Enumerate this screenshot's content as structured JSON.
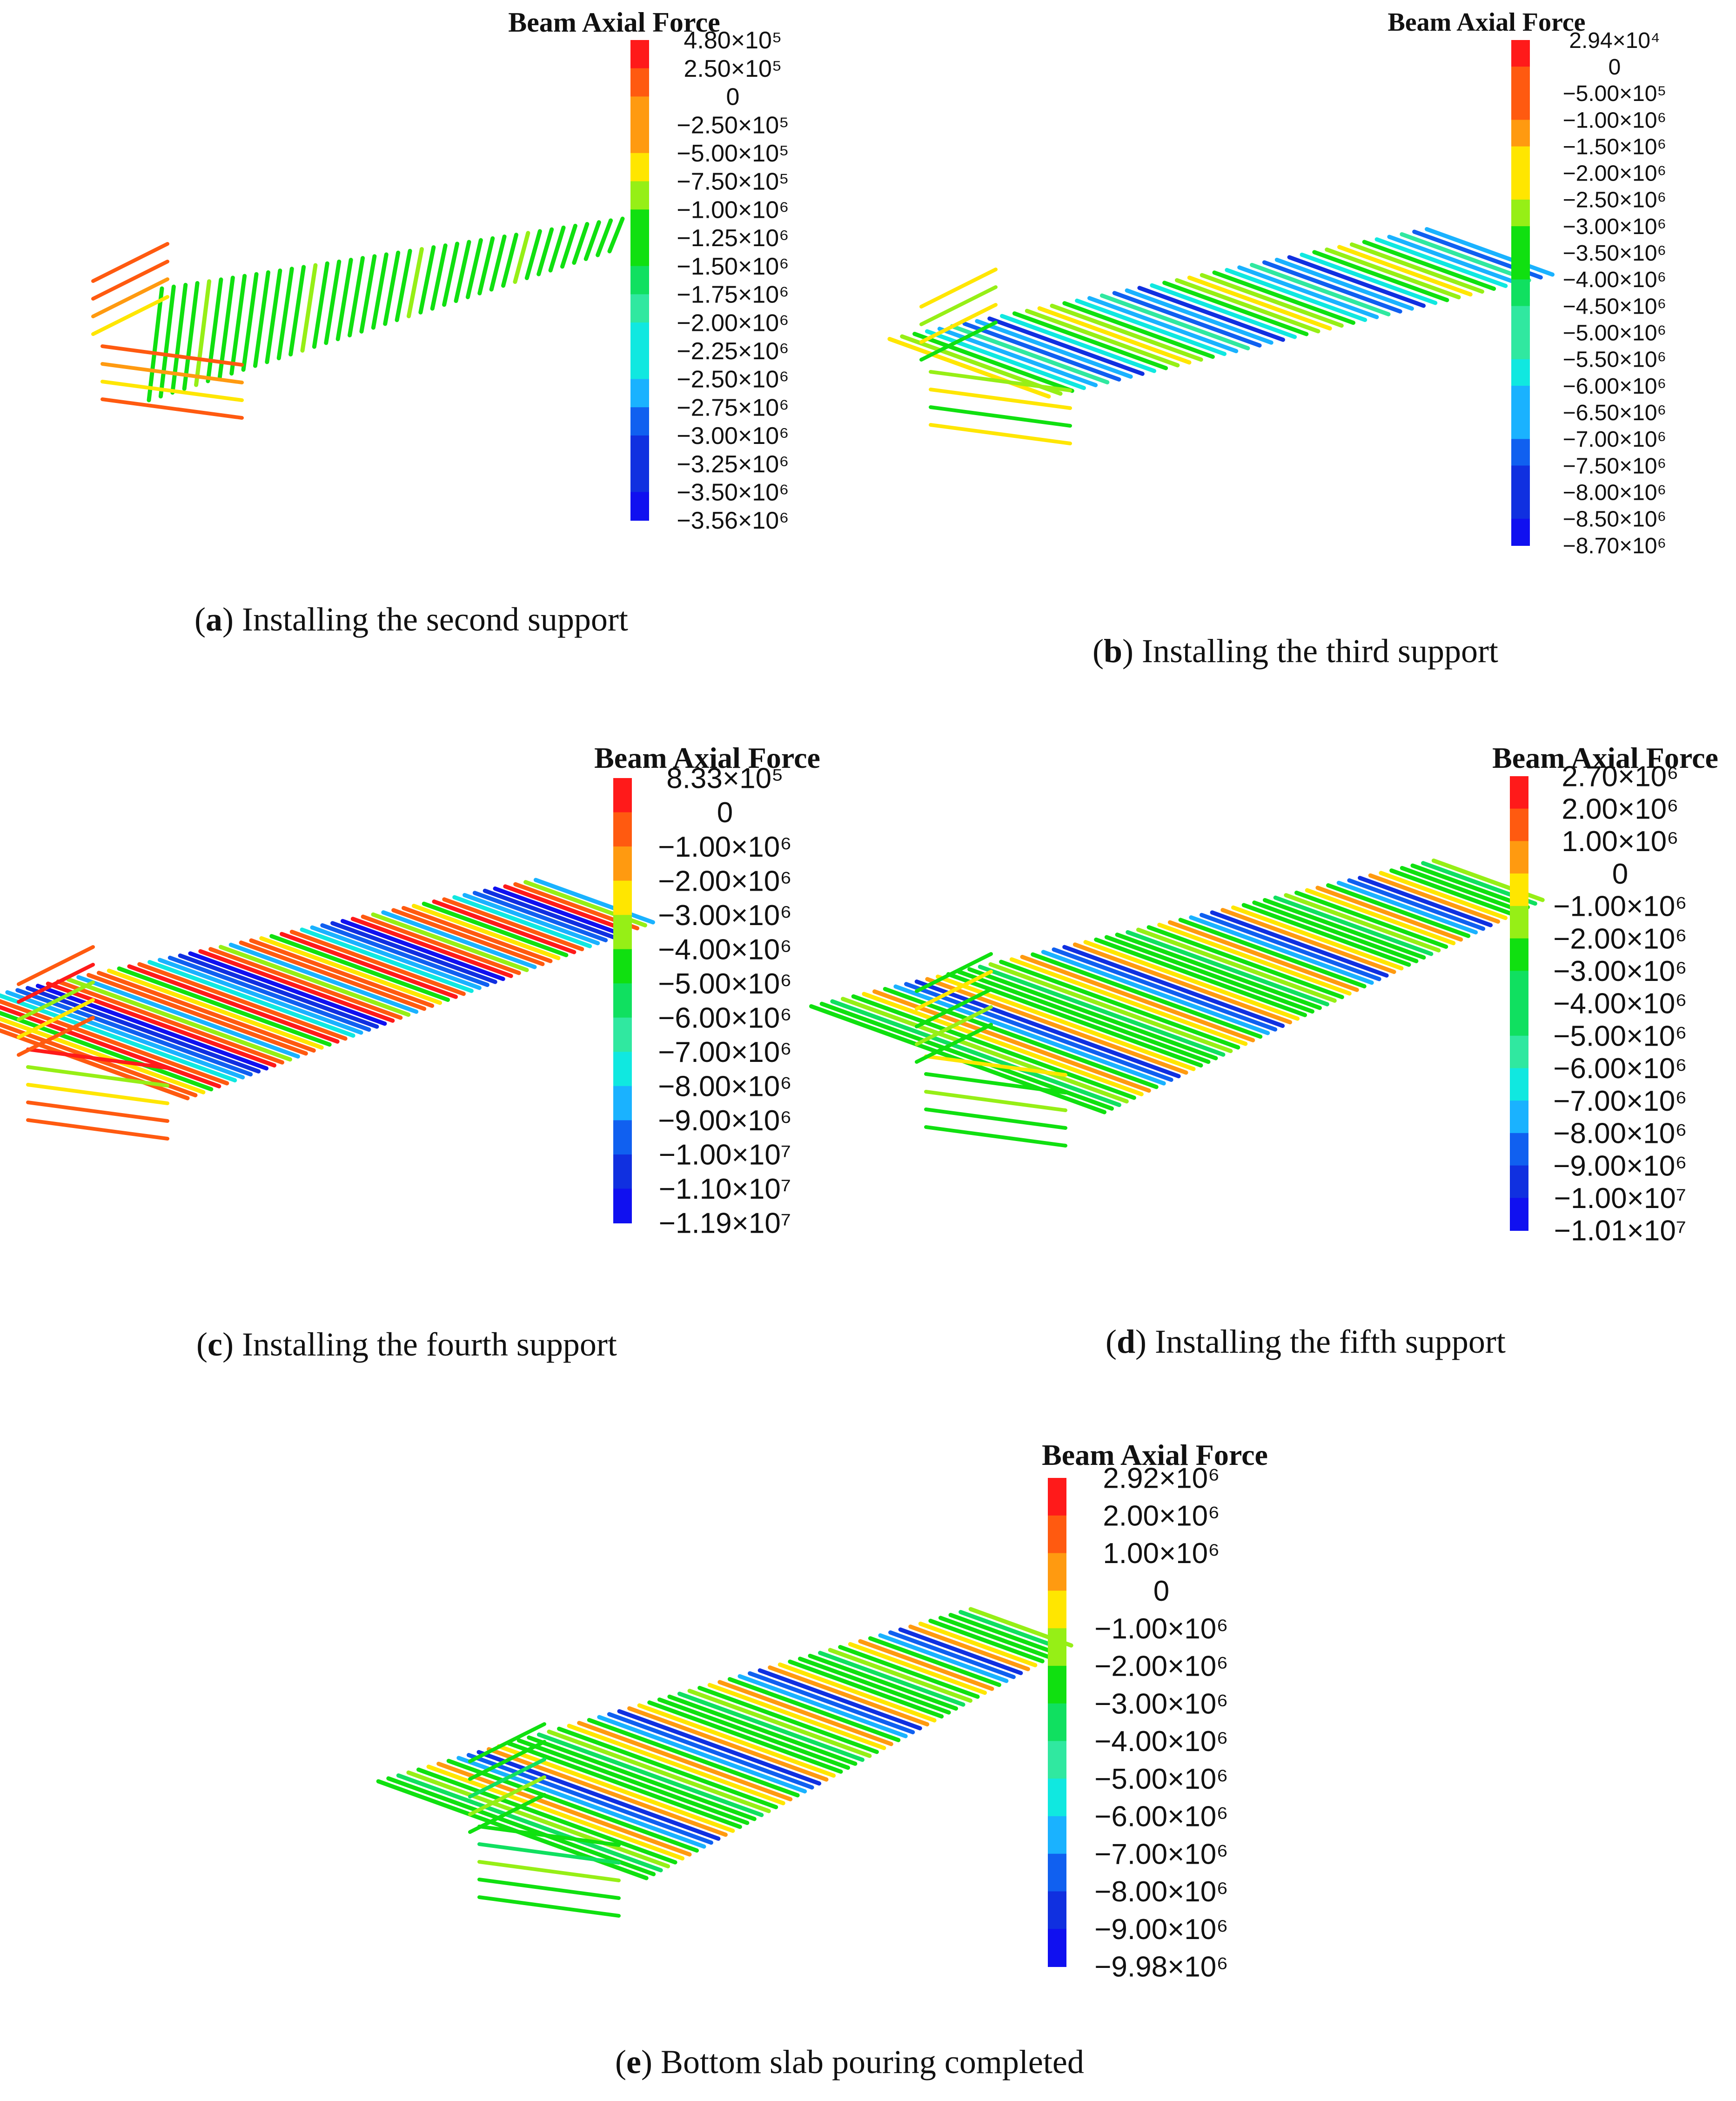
{
  "figure": {
    "palette": [
      "#ff1a1a",
      "#ff5a10",
      "#ff9a10",
      "#ffe600",
      "#96ef16",
      "#10e010",
      "#10e060",
      "#30e8a0",
      "#10e8e0",
      "#1ab2ff",
      "#1060f0",
      "#1030e0",
      "#1010f0"
    ],
    "panels": [
      {
        "id": "a",
        "label": "a",
        "caption": "Installing the second support",
        "legend": {
          "title": "Beam Axial Force",
          "labels": [
            "4.80×10⁵",
            "2.50×10⁵",
            "0",
            "−2.50×10⁵",
            "−5.00×10⁵",
            "−7.50×10⁵",
            "−1.00×10⁶",
            "−1.25×10⁶",
            "−1.50×10⁶",
            "−1.75×10⁶",
            "−2.00×10⁶",
            "−2.25×10⁶",
            "−2.50×10⁶",
            "−2.75×10⁶",
            "−3.00×10⁶",
            "−3.25×10⁶",
            "−3.50×10⁶",
            "−3.56×10⁶"
          ]
        }
      },
      {
        "id": "b",
        "label": "b",
        "caption": "Installing the third support",
        "legend": {
          "title": "Beam Axial Force",
          "labels": [
            "2.94×10⁴",
            "0",
            "−5.00×10⁵",
            "−1.00×10⁶",
            "−1.50×10⁶",
            "−2.00×10⁶",
            "−2.50×10⁶",
            "−3.00×10⁶",
            "−3.50×10⁶",
            "−4.00×10⁶",
            "−4.50×10⁶",
            "−5.00×10⁶",
            "−5.50×10⁶",
            "−6.00×10⁶",
            "−6.50×10⁶",
            "−7.00×10⁶",
            "−7.50×10⁶",
            "−8.00×10⁶",
            "−8.50×10⁶",
            "−8.70×10⁶"
          ]
        }
      },
      {
        "id": "c",
        "label": "c",
        "caption": "Installing the fourth support",
        "legend": {
          "title": "Beam Axial Force",
          "labels": [
            "8.33×10⁵",
            "0",
            "−1.00×10⁶",
            "−2.00×10⁶",
            "−3.00×10⁶",
            "−4.00×10⁶",
            "−5.00×10⁶",
            "−6.00×10⁶",
            "−7.00×10⁶",
            "−8.00×10⁶",
            "−9.00×10⁶",
            "−1.00×10⁷",
            "−1.10×10⁷",
            "−1.19×10⁷"
          ]
        }
      },
      {
        "id": "d",
        "label": "d",
        "caption": "Installing the fifth support",
        "legend": {
          "title": "Beam Axial Force",
          "labels": [
            "2.70×10⁶",
            "2.00×10⁶",
            "1.00×10⁶",
            "0",
            "−1.00×10⁶",
            "−2.00×10⁶",
            "−3.00×10⁶",
            "−4.00×10⁶",
            "−5.00×10⁶",
            "−6.00×10⁶",
            "−7.00×10⁶",
            "−8.00×10⁶",
            "−9.00×10⁶",
            "−1.00×10⁷",
            "−1.01×10⁷"
          ]
        }
      },
      {
        "id": "e",
        "label": "e",
        "caption": "Bottom slab pouring completed",
        "legend": {
          "title": "Beam Axial Force",
          "labels": [
            "2.92×10⁶",
            "2.00×10⁶",
            "1.00×10⁶",
            "0",
            "−1.00×10⁶",
            "−2.00×10⁶",
            "−3.00×10⁶",
            "−4.00×10⁶",
            "−5.00×10⁶",
            "−6.00×10⁶",
            "−7.00×10⁶",
            "−8.00×10⁶",
            "−9.00×10⁶",
            "−9.98×10⁶"
          ]
        }
      }
    ]
  }
}
